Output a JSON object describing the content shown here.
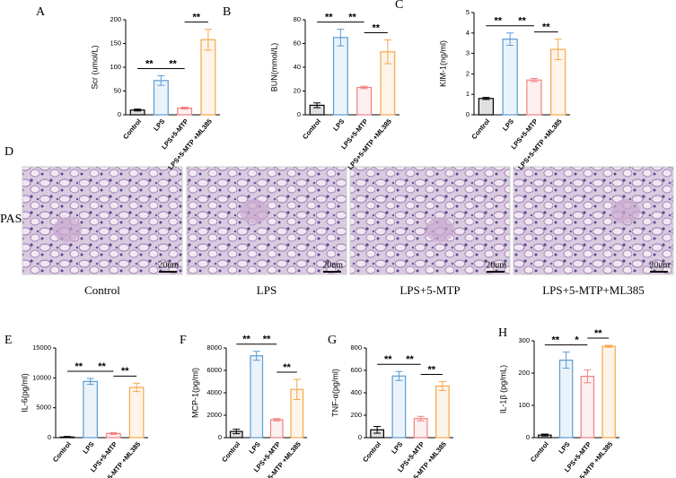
{
  "chart_data": [
    {
      "type": "bar",
      "panel": "A",
      "ylabel": "Scr (umol/L)",
      "categories": [
        "Control",
        "LPS",
        "LPS+5-MTP",
        "LPS+5-MTP +ML385"
      ],
      "values": [
        10,
        72,
        14,
        158
      ],
      "errors": [
        2,
        10,
        2,
        22
      ],
      "colors": [
        "#000000",
        "#5b9bd5",
        "#f08080",
        "#f5a84a"
      ],
      "ylim": [
        0,
        200
      ],
      "yticks": [
        0,
        50,
        100,
        150,
        200
      ],
      "annotations": [
        {
          "text": "**",
          "between": [
            "Control",
            "LPS"
          ]
        },
        {
          "text": "**",
          "between": [
            "LPS",
            "LPS+5-MTP"
          ]
        },
        {
          "text": "**",
          "between": [
            "LPS+5-MTP",
            "LPS+5-MTP +ML385"
          ]
        }
      ]
    },
    {
      "type": "bar",
      "panel": "B",
      "ylabel": "BUN(mmol/L)",
      "categories": [
        "Control",
        "LPS",
        "LPS+5-MTP",
        "LPS+5-MTP +ML385"
      ],
      "values": [
        8,
        65,
        23,
        53
      ],
      "errors": [
        2,
        7,
        1,
        10
      ],
      "colors": [
        "#000000",
        "#5b9bd5",
        "#f08080",
        "#f5a84a"
      ],
      "ylim": [
        0,
        80
      ],
      "yticks": [
        0,
        20,
        40,
        60,
        80
      ],
      "annotations": [
        {
          "text": "**",
          "between": [
            "Control",
            "LPS"
          ]
        },
        {
          "text": "**",
          "between": [
            "LPS",
            "LPS+5-MTP"
          ]
        },
        {
          "text": "**",
          "between": [
            "LPS+5-MTP",
            "LPS+5-MTP +ML385"
          ]
        }
      ]
    },
    {
      "type": "bar",
      "panel": "C",
      "ylabel": "KIM-1(ng/ml)",
      "categories": [
        "Control",
        "LPS",
        "LPS+5-MTP",
        "LPS+5-MTP +ML385"
      ],
      "values": [
        0.8,
        3.7,
        1.7,
        3.2
      ],
      "errors": [
        0.05,
        0.3,
        0.08,
        0.5
      ],
      "colors": [
        "#000000",
        "#5b9bd5",
        "#f08080",
        "#f5a84a"
      ],
      "ylim": [
        0,
        5
      ],
      "yticks": [
        0,
        1,
        2,
        3,
        4,
        5
      ],
      "annotations": [
        {
          "text": "**",
          "between": [
            "Control",
            "LPS"
          ]
        },
        {
          "text": "**",
          "between": [
            "LPS",
            "LPS+5-MTP"
          ]
        },
        {
          "text": "**",
          "between": [
            "LPS+5-MTP",
            "LPS+5-MTP +ML385"
          ]
        }
      ]
    },
    {
      "type": "bar",
      "panel": "E",
      "ylabel": "IL-6(pg/ml)",
      "categories": [
        "Control",
        "LPS",
        "LPS+5-MTP",
        "LPS+5-MTP +ML385"
      ],
      "values": [
        100,
        9400,
        700,
        8400
      ],
      "errors": [
        100,
        500,
        150,
        700
      ],
      "colors": [
        "#000000",
        "#5b9bd5",
        "#f08080",
        "#f5a84a"
      ],
      "ylim": [
        0,
        15000
      ],
      "yticks": [
        0,
        5000,
        10000,
        15000
      ],
      "annotations": [
        {
          "text": "**",
          "between": [
            "Control",
            "LPS"
          ]
        },
        {
          "text": "**",
          "between": [
            "LPS",
            "LPS+5-MTP"
          ]
        },
        {
          "text": "**",
          "between": [
            "LPS+5-MTP",
            "LPS+5-MTP +ML385"
          ]
        }
      ]
    },
    {
      "type": "bar",
      "panel": "F",
      "ylabel": "MCP-1(pg/ml)",
      "categories": [
        "Control",
        "LPS",
        "LPS+5-MTP",
        "LPS+5-MTP +ML385"
      ],
      "values": [
        550,
        7300,
        1600,
        4300
      ],
      "errors": [
        200,
        400,
        100,
        900
      ],
      "colors": [
        "#000000",
        "#5b9bd5",
        "#f08080",
        "#f5a84a"
      ],
      "ylim": [
        0,
        8000
      ],
      "yticks": [
        0,
        2000,
        4000,
        6000,
        8000
      ],
      "annotations": [
        {
          "text": "**",
          "between": [
            "Control",
            "LPS"
          ]
        },
        {
          "text": "**",
          "between": [
            "LPS",
            "LPS+5-MTP"
          ]
        },
        {
          "text": "**",
          "between": [
            "LPS+5-MTP",
            "LPS+5-MTP +ML385"
          ]
        }
      ]
    },
    {
      "type": "bar",
      "panel": "G",
      "ylabel": "TNF-α(pg/ml)",
      "categories": [
        "Control",
        "LPS",
        "LPS+5-MTP",
        "LPS+5-MTP +ML385"
      ],
      "values": [
        70,
        550,
        170,
        460
      ],
      "errors": [
        30,
        40,
        20,
        40
      ],
      "colors": [
        "#000000",
        "#5b9bd5",
        "#f08080",
        "#f5a84a"
      ],
      "ylim": [
        0,
        800
      ],
      "yticks": [
        0,
        200,
        400,
        600,
        800
      ],
      "annotations": [
        {
          "text": "**",
          "between": [
            "Control",
            "LPS"
          ]
        },
        {
          "text": "**",
          "between": [
            "LPS",
            "LPS+5-MTP"
          ]
        },
        {
          "text": "**",
          "between": [
            "LPS+5-MTP",
            "LPS+5-MTP +ML385"
          ]
        }
      ]
    },
    {
      "type": "bar",
      "panel": "H",
      "ylabel": "IL-1β (pg/mL)",
      "categories": [
        "Control",
        "LPS",
        "LPS+5-MTP",
        "LPS+5-MTP +ML385"
      ],
      "values": [
        8,
        240,
        190,
        283
      ],
      "errors": [
        3,
        25,
        20,
        3
      ],
      "colors": [
        "#000000",
        "#5b9bd5",
        "#f08080",
        "#f5a84a"
      ],
      "ylim": [
        0,
        300
      ],
      "yticks": [
        0,
        100,
        200,
        300
      ],
      "annotations": [
        {
          "text": "**",
          "between": [
            "Control",
            "LPS"
          ]
        },
        {
          "text": "*",
          "between": [
            "LPS",
            "LPS+5-MTP"
          ]
        },
        {
          "text": "**",
          "between": [
            "LPS+5-MTP",
            "LPS+5-MTP +ML385"
          ]
        }
      ]
    }
  ],
  "histology": {
    "panel": "D",
    "stain": "PAS",
    "images": [
      {
        "label": "Control",
        "scale": "20um"
      },
      {
        "label": "LPS",
        "scale": "20um"
      },
      {
        "label": "LPS+5-MTP",
        "scale": "20um"
      },
      {
        "label": "LPS+5-MTP+ML385",
        "scale": "20um"
      }
    ]
  }
}
